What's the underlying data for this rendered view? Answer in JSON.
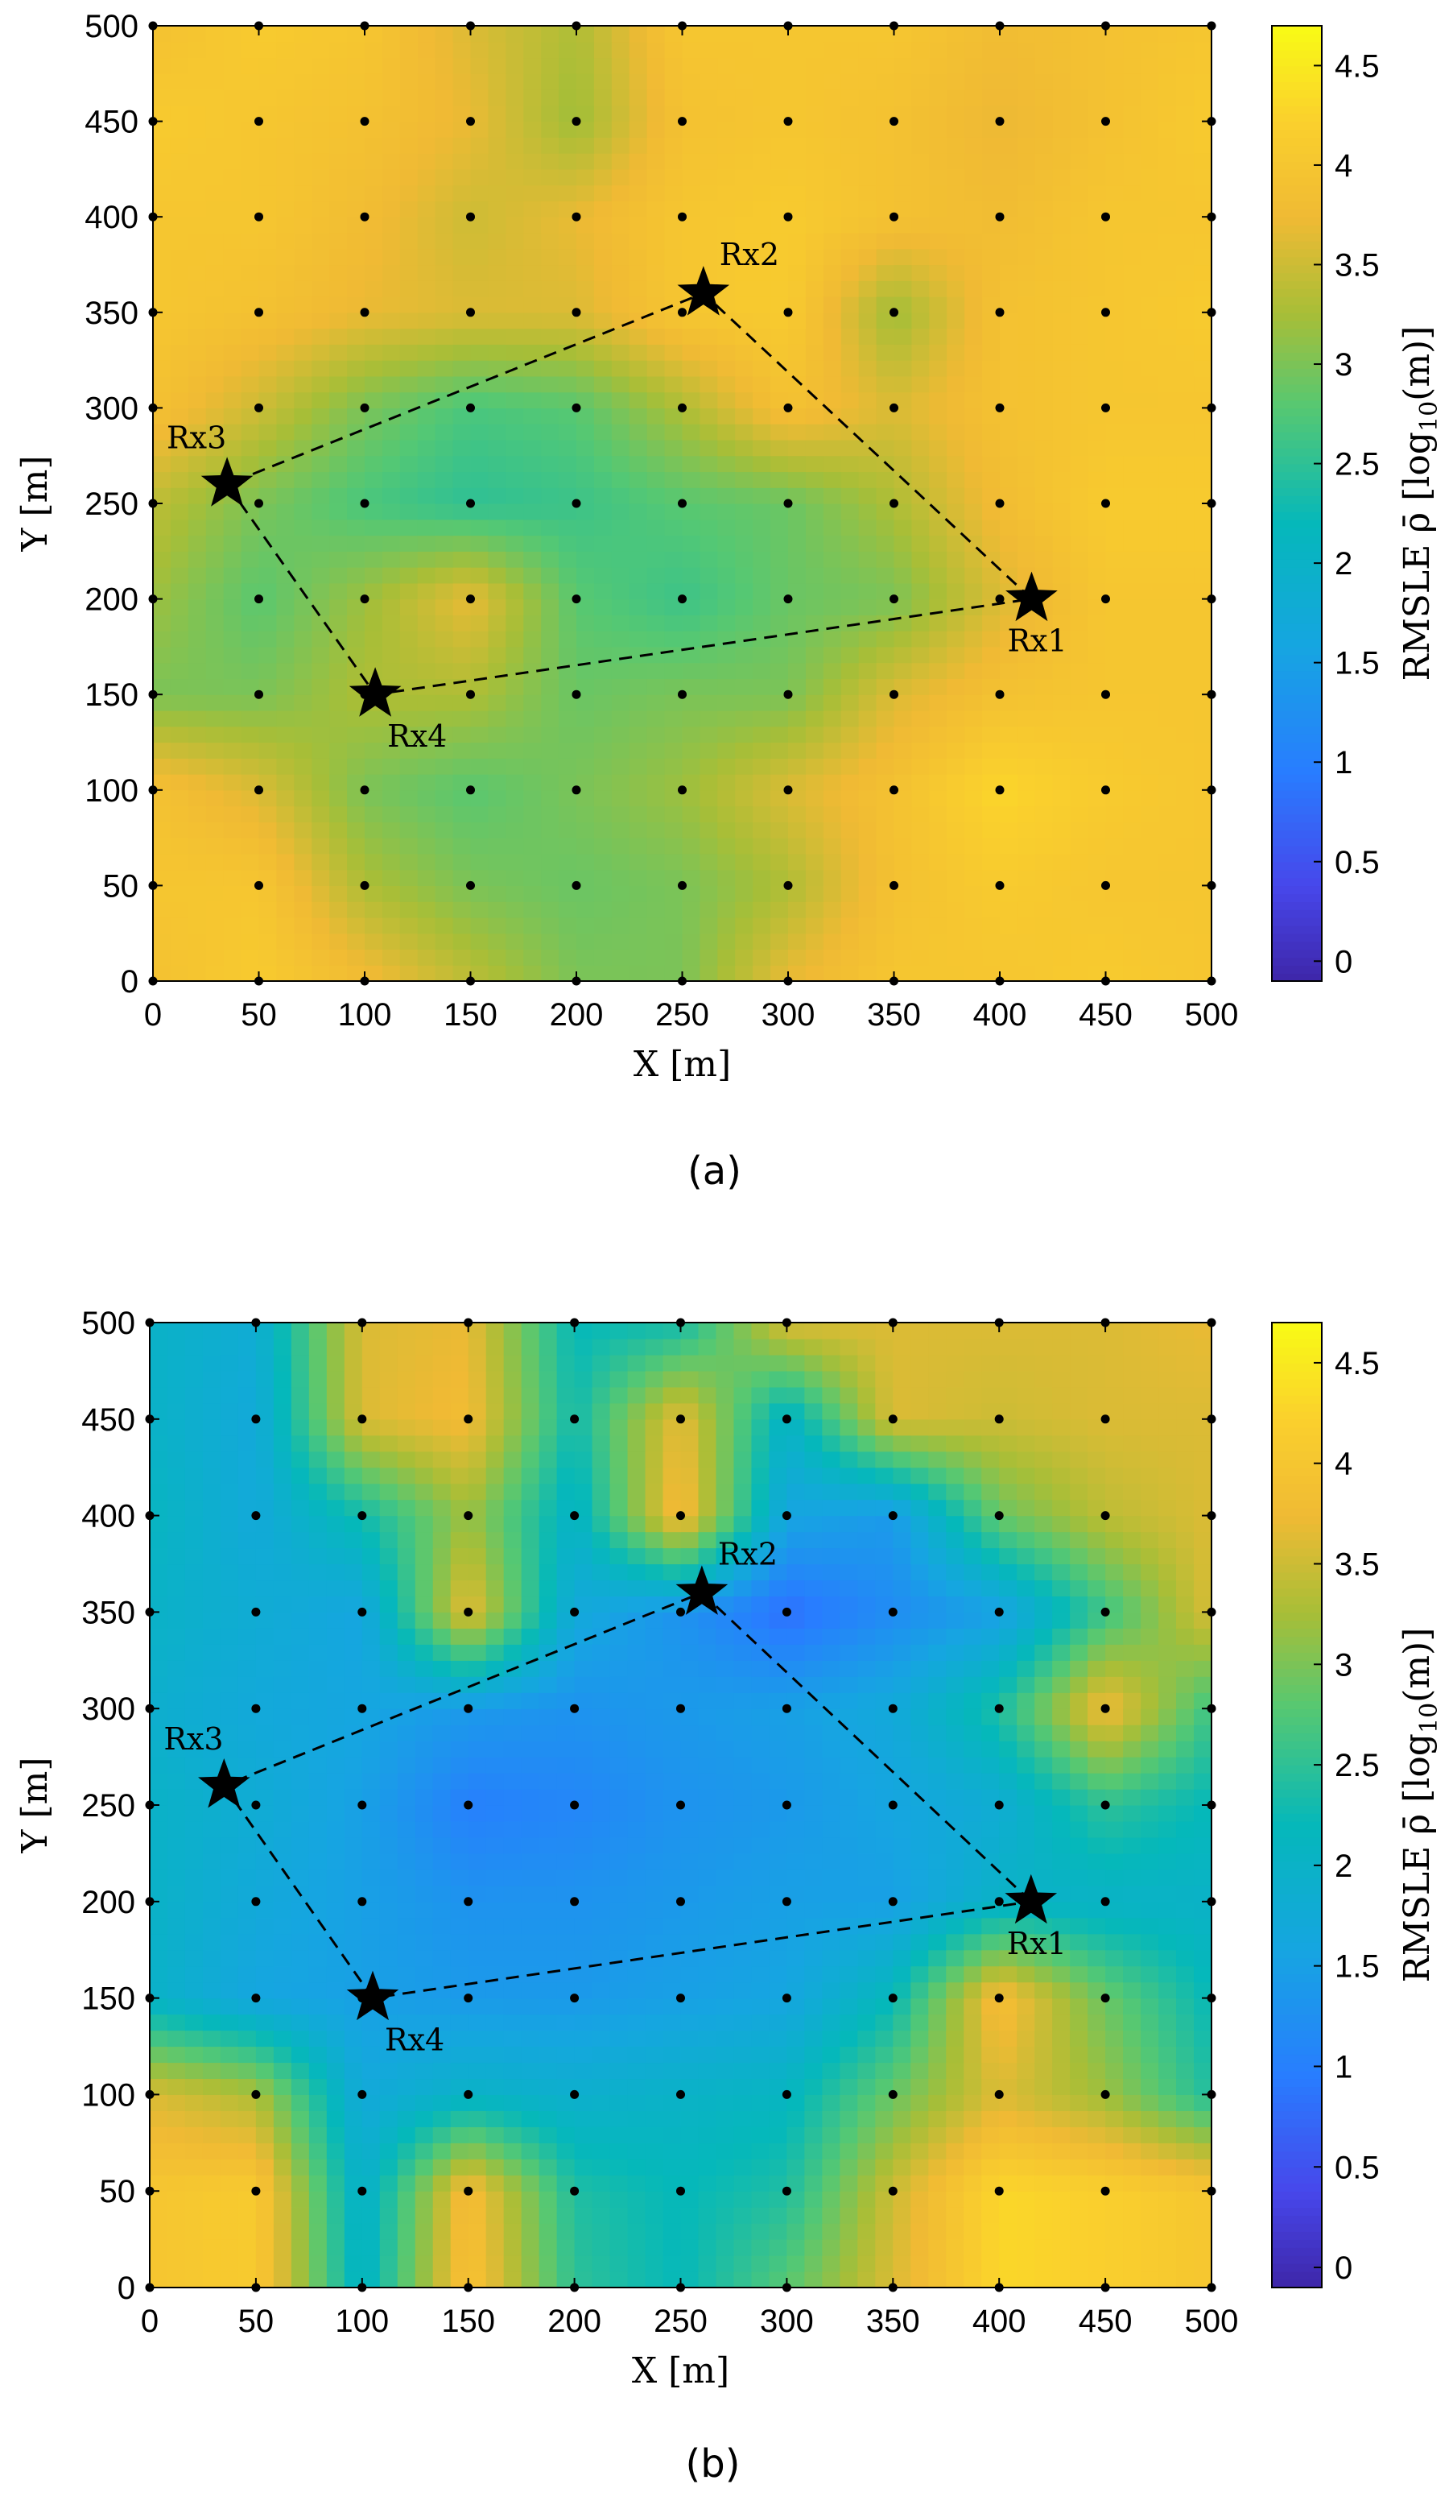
{
  "chart_data": [
    {
      "type": "heatmap",
      "caption": "(a)",
      "xlabel": "X [m]",
      "ylabel": "Y [m]",
      "xlim": [
        0,
        500
      ],
      "ylim": [
        0,
        500
      ],
      "xticks": [
        0,
        50,
        100,
        150,
        200,
        250,
        300,
        350,
        400,
        450,
        500
      ],
      "yticks": [
        0,
        50,
        100,
        150,
        200,
        250,
        300,
        350,
        400,
        450,
        500
      ],
      "grid_x": [
        0,
        50,
        100,
        150,
        200,
        250,
        300,
        350,
        400,
        450,
        500
      ],
      "grid_y": [
        0,
        50,
        100,
        150,
        200,
        250,
        300,
        350,
        400,
        450,
        500
      ],
      "z_rows_bottom_to_top": [
        [
          3.9,
          4.1,
          3.8,
          3.4,
          3.0,
          3.0,
          3.7,
          4.0,
          4.0,
          4.1,
          4.0
        ],
        [
          4.0,
          4.0,
          3.3,
          3.0,
          2.9,
          3.0,
          3.3,
          3.9,
          4.1,
          4.0,
          4.0
        ],
        [
          3.9,
          3.6,
          3.0,
          2.8,
          3.0,
          3.2,
          3.6,
          3.9,
          4.3,
          4.1,
          4.0
        ],
        [
          3.0,
          3.0,
          3.3,
          3.3,
          2.9,
          3.0,
          3.0,
          3.6,
          3.9,
          4.0,
          4.0
        ],
        [
          3.2,
          2.8,
          3.2,
          3.7,
          2.8,
          2.6,
          2.9,
          3.0,
          3.6,
          4.0,
          4.0
        ],
        [
          3.4,
          3.0,
          2.7,
          2.5,
          2.6,
          2.8,
          2.9,
          3.3,
          3.8,
          4.1,
          4.1
        ],
        [
          3.9,
          3.5,
          3.0,
          2.7,
          2.8,
          3.3,
          3.9,
          3.6,
          3.9,
          4.0,
          4.0
        ],
        [
          4.0,
          3.9,
          3.7,
          3.6,
          3.6,
          4.0,
          4.1,
          3.2,
          3.9,
          4.0,
          4.1
        ],
        [
          4.0,
          4.0,
          3.8,
          3.5,
          3.7,
          4.0,
          4.1,
          3.9,
          3.8,
          4.0,
          4.0
        ],
        [
          4.1,
          4.0,
          3.9,
          3.7,
          3.2,
          3.9,
          4.0,
          3.9,
          3.7,
          3.9,
          4.1
        ],
        [
          3.9,
          4.1,
          4.0,
          3.6,
          3.3,
          4.0,
          4.0,
          4.0,
          3.8,
          3.9,
          4.0
        ]
      ],
      "receivers": [
        {
          "label": "Rx1",
          "x": 415,
          "y": 200
        },
        {
          "label": "Rx2",
          "x": 260,
          "y": 360
        },
        {
          "label": "Rx3",
          "x": 35,
          "y": 260
        },
        {
          "label": "Rx4",
          "x": 105,
          "y": 150
        }
      ],
      "path_order": [
        "Rx1",
        "Rx2",
        "Rx3",
        "Rx4",
        "Rx1"
      ],
      "colorbar": {
        "label": "RMSLE ρ̄ [log",
        "label_sub": "10",
        "label_end": "(m)]",
        "clim": [
          -0.1,
          4.7
        ],
        "ticks": [
          0,
          0.5,
          1,
          1.5,
          2,
          2.5,
          3,
          3.5,
          4,
          4.5
        ],
        "tick_labels": [
          "0",
          "0.5",
          "1",
          "1.5",
          "2",
          "2.5",
          "3",
          "3.5",
          "4",
          "4.5"
        ]
      }
    },
    {
      "type": "heatmap",
      "caption": "(b)",
      "xlabel": "X [m]",
      "ylabel": "Y [m]",
      "xlim": [
        0,
        500
      ],
      "ylim": [
        0,
        500
      ],
      "xticks": [
        0,
        50,
        100,
        150,
        200,
        250,
        300,
        350,
        400,
        450,
        500
      ],
      "yticks": [
        0,
        50,
        100,
        150,
        200,
        250,
        300,
        350,
        400,
        450,
        500
      ],
      "grid_x": [
        0,
        50,
        100,
        150,
        200,
        250,
        300,
        350,
        400,
        450,
        500
      ],
      "grid_y": [
        0,
        50,
        100,
        150,
        200,
        250,
        300,
        350,
        400,
        450,
        500
      ],
      "z_rows_bottom_to_top": [
        [
          4.0,
          4.1,
          2.0,
          4.0,
          2.5,
          2.2,
          2.8,
          3.6,
          4.3,
          4.2,
          4.0
        ],
        [
          4.0,
          4.1,
          1.9,
          3.9,
          2.4,
          2.2,
          2.4,
          3.5,
          4.3,
          4.2,
          4.0
        ],
        [
          3.6,
          3.3,
          1.7,
          2.0,
          1.9,
          2.0,
          2.1,
          2.9,
          3.6,
          3.2,
          2.4
        ],
        [
          2.0,
          1.6,
          1.5,
          1.4,
          1.4,
          1.5,
          1.6,
          2.2,
          3.9,
          2.9,
          2.2
        ],
        [
          2.0,
          1.7,
          1.5,
          1.3,
          1.3,
          1.4,
          1.5,
          1.5,
          2.0,
          2.0,
          2.0
        ],
        [
          2.0,
          1.8,
          1.5,
          1.0,
          1.1,
          1.3,
          1.4,
          1.6,
          1.8,
          2.5,
          2.2
        ],
        [
          1.9,
          1.7,
          1.6,
          1.4,
          1.3,
          1.4,
          1.5,
          1.7,
          2.4,
          3.8,
          2.6
        ],
        [
          2.0,
          1.8,
          1.6,
          3.7,
          1.7,
          1.3,
          0.8,
          1.2,
          1.5,
          2.6,
          3.6
        ],
        [
          2.1,
          1.7,
          2.3,
          3.2,
          2.0,
          3.9,
          1.6,
          1.4,
          2.9,
          3.4,
          3.6
        ],
        [
          2.0,
          1.7,
          3.6,
          3.8,
          2.3,
          3.7,
          2.0,
          3.6,
          3.5,
          3.6,
          3.6
        ],
        [
          2.0,
          1.8,
          3.6,
          3.7,
          2.2,
          2.3,
          3.6,
          3.6,
          3.6,
          3.6,
          3.7
        ]
      ],
      "receivers": [
        {
          "label": "Rx1",
          "x": 415,
          "y": 200
        },
        {
          "label": "Rx2",
          "x": 260,
          "y": 360
        },
        {
          "label": "Rx3",
          "x": 35,
          "y": 260
        },
        {
          "label": "Rx4",
          "x": 105,
          "y": 150
        }
      ],
      "path_order": [
        "Rx1",
        "Rx2",
        "Rx3",
        "Rx4",
        "Rx1"
      ],
      "colorbar": {
        "label": "RMSLE ρ̄ [log",
        "label_sub": "10",
        "label_end": "(m)]",
        "clim": [
          -0.1,
          4.7
        ],
        "ticks": [
          0,
          0.5,
          1,
          1.5,
          2,
          2.5,
          3,
          3.5,
          4,
          4.5
        ],
        "tick_labels": [
          "0",
          "0.5",
          "1",
          "1.5",
          "2",
          "2.5",
          "3",
          "3.5",
          "4",
          "4.5"
        ]
      }
    }
  ]
}
